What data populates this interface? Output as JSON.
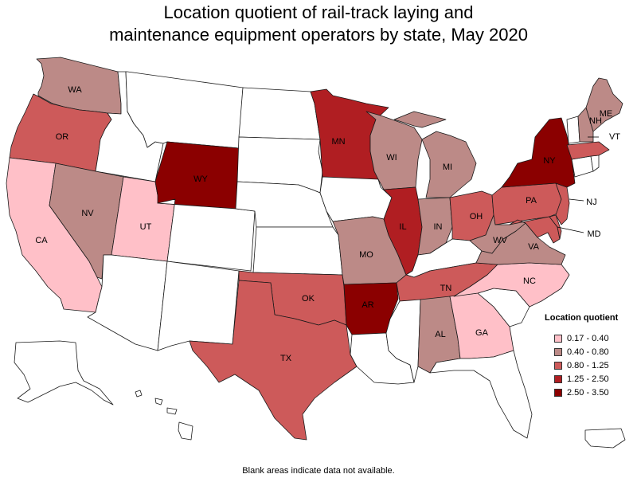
{
  "title_line1": "Location quotient of rail-track laying and",
  "title_line2": "maintenance equipment operators by state, May 2020",
  "footnote": "Blank areas indicate data not available.",
  "legend": {
    "title": "Location quotient",
    "items": [
      {
        "label": "0.17 - 0.40",
        "color": "#ffc0c8"
      },
      {
        "label": "0.40 - 0.80",
        "color": "#bc8a87"
      },
      {
        "label": "0.80 - 1.25",
        "color": "#cd5a5a"
      },
      {
        "label": "1.25 - 2.50",
        "color": "#b01e22"
      },
      {
        "label": "2.50 - 3.50",
        "color": "#8b0000"
      }
    ]
  },
  "states": [
    {
      "id": "WA",
      "label": "WA",
      "class": 1
    },
    {
      "id": "OR",
      "label": "OR",
      "class": 2
    },
    {
      "id": "CA",
      "label": "CA",
      "class": 0
    },
    {
      "id": "NV",
      "label": "NV",
      "class": 1
    },
    {
      "id": "UT",
      "label": "UT",
      "class": 0
    },
    {
      "id": "WY",
      "label": "WY",
      "class": 4
    },
    {
      "id": "MN",
      "label": "MN",
      "class": 3
    },
    {
      "id": "WI",
      "label": "WI",
      "class": 1
    },
    {
      "id": "MI",
      "label": "MI",
      "class": 1
    },
    {
      "id": "IL",
      "label": "IL",
      "class": 3
    },
    {
      "id": "IN",
      "label": "IN",
      "class": 1
    },
    {
      "id": "OH",
      "label": "OH",
      "class": 2
    },
    {
      "id": "PA",
      "label": "PA",
      "class": 2
    },
    {
      "id": "NY",
      "label": "NY",
      "class": 4
    },
    {
      "id": "NJ",
      "label": "NJ",
      "class": 2
    },
    {
      "id": "MD",
      "label": "MD",
      "class": 2
    },
    {
      "id": "WV",
      "label": "WV",
      "class": 1
    },
    {
      "id": "VA",
      "label": "VA",
      "class": 1
    },
    {
      "id": "NC",
      "label": "NC",
      "class": 0
    },
    {
      "id": "TN",
      "label": "TN",
      "class": 2
    },
    {
      "id": "MO",
      "label": "MO",
      "class": 1
    },
    {
      "id": "AR",
      "label": "AR",
      "class": 4
    },
    {
      "id": "OK",
      "label": "OK",
      "class": 2
    },
    {
      "id": "TX",
      "label": "TX",
      "class": 2
    },
    {
      "id": "AL",
      "label": "AL",
      "class": 1
    },
    {
      "id": "GA",
      "label": "GA",
      "class": 0
    },
    {
      "id": "ME",
      "label": "ME",
      "class": 1
    },
    {
      "id": "NH",
      "label": "NH",
      "class": 1
    },
    {
      "id": "VT",
      "label": "VT",
      "class": null
    },
    {
      "id": "MA",
      "label": "",
      "class": 2
    },
    {
      "id": "DE",
      "label": "",
      "class": 2
    }
  ]
}
